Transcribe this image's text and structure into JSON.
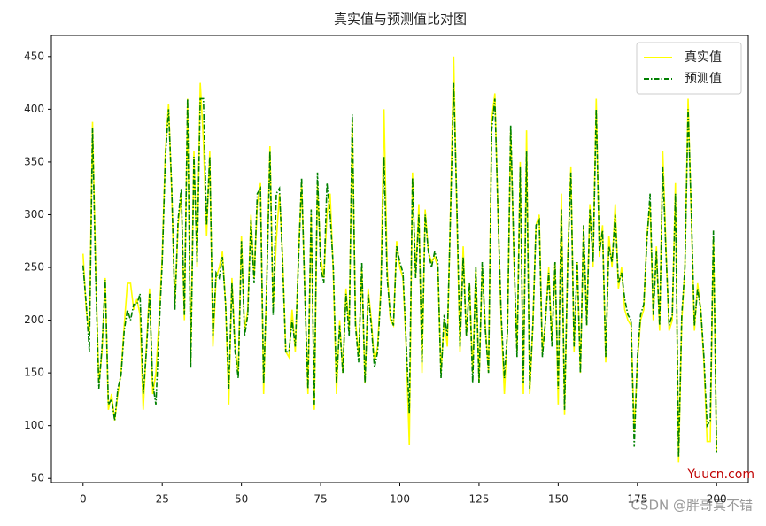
{
  "chart_data": {
    "type": "line",
    "title": "真实值与预测值比对图",
    "x": [
      0,
      1,
      2,
      3,
      4,
      5,
      6,
      7,
      8,
      9,
      10,
      11,
      12,
      13,
      14,
      15,
      16,
      17,
      18,
      19,
      20,
      21,
      22,
      23,
      24,
      25,
      26,
      27,
      28,
      29,
      30,
      31,
      32,
      33,
      34,
      35,
      36,
      37,
      38,
      39,
      40,
      41,
      42,
      43,
      44,
      45,
      46,
      47,
      48,
      49,
      50,
      51,
      52,
      53,
      54,
      55,
      56,
      57,
      58,
      59,
      60,
      61,
      62,
      63,
      64,
      65,
      66,
      67,
      68,
      69,
      70,
      71,
      72,
      73,
      74,
      75,
      76,
      77,
      78,
      79,
      80,
      81,
      82,
      83,
      84,
      85,
      86,
      87,
      88,
      89,
      90,
      91,
      92,
      93,
      94,
      95,
      96,
      97,
      98,
      99,
      100,
      101,
      102,
      103,
      104,
      105,
      106,
      107,
      108,
      109,
      110,
      111,
      112,
      113,
      114,
      115,
      116,
      117,
      118,
      119,
      120,
      121,
      122,
      123,
      124,
      125,
      126,
      127,
      128,
      129,
      130,
      131,
      132,
      133,
      134,
      135,
      136,
      137,
      138,
      139,
      140,
      141,
      142,
      143,
      144,
      145,
      146,
      147,
      148,
      149,
      150,
      151,
      152,
      153,
      154,
      155,
      156,
      157,
      158,
      159,
      160,
      161,
      162,
      163,
      164,
      165,
      166,
      167,
      168,
      169,
      170,
      171,
      172,
      173,
      174,
      175,
      176,
      177,
      178,
      179,
      180,
      181,
      182,
      183,
      184,
      185,
      186,
      187,
      188,
      189,
      190,
      191,
      192,
      193,
      194,
      195,
      196,
      197,
      198,
      199,
      200
    ],
    "series": [
      {
        "name": "真实值",
        "color": "#ffff00",
        "dash": "solid",
        "values": [
          263,
          210,
          185,
          388,
          250,
          140,
          170,
          240,
          115,
          130,
          105,
          130,
          150,
          195,
          235,
          235,
          210,
          220,
          205,
          115,
          175,
          230,
          130,
          150,
          200,
          260,
          360,
          405,
          320,
          215,
          290,
          320,
          200,
          410,
          160,
          360,
          250,
          425,
          370,
          280,
          360,
          175,
          240,
          250,
          265,
          215,
          120,
          240,
          175,
          150,
          280,
          190,
          210,
          300,
          240,
          310,
          330,
          130,
          240,
          365,
          210,
          275,
          320,
          260,
          170,
          165,
          210,
          170,
          260,
          330,
          230,
          130,
          300,
          115,
          330,
          260,
          240,
          300,
          320,
          245,
          130,
          200,
          150,
          230,
          190,
          390,
          200,
          165,
          250,
          140,
          230,
          200,
          160,
          175,
          230,
          400,
          250,
          200,
          195,
          275,
          250,
          240,
          175,
          82,
          340,
          240,
          310,
          150,
          305,
          265,
          255,
          260,
          250,
          150,
          200,
          175,
          305,
          450,
          300,
          170,
          270,
          185,
          235,
          150,
          250,
          140,
          250,
          195,
          150,
          390,
          415,
          300,
          200,
          130,
          190,
          380,
          260,
          170,
          350,
          130,
          380,
          130,
          195,
          290,
          300,
          170,
          200,
          250,
          180,
          255,
          120,
          320,
          110,
          260,
          345,
          170,
          255,
          150,
          290,
          195,
          310,
          250,
          410,
          260,
          290,
          160,
          280,
          250,
          310,
          230,
          250,
          210,
          200,
          195,
          95,
          160,
          200,
          210,
          280,
          310,
          200,
          270,
          190,
          360,
          270,
          190,
          200,
          330,
          65,
          200,
          250,
          410,
          300,
          190,
          235,
          210,
          160,
          85,
          85,
          280,
          75
        ]
      },
      {
        "name": "预测值",
        "color": "#008000",
        "dash": "dashdot",
        "values": [
          252,
          215,
          170,
          382,
          240,
          135,
          175,
          238,
          120,
          125,
          105,
          135,
          148,
          190,
          210,
          200,
          215,
          215,
          225,
          130,
          170,
          225,
          140,
          120,
          190,
          255,
          355,
          400,
          325,
          210,
          295,
          325,
          205,
          410,
          155,
          355,
          255,
          410,
          410,
          290,
          355,
          185,
          245,
          240,
          260,
          215,
          135,
          235,
          170,
          145,
          275,
          185,
          205,
          295,
          235,
          320,
          325,
          140,
          235,
          360,
          205,
          320,
          325,
          255,
          170,
          170,
          200,
          175,
          255,
          335,
          225,
          135,
          305,
          120,
          340,
          250,
          235,
          330,
          300,
          250,
          140,
          195,
          150,
          225,
          185,
          395,
          195,
          160,
          255,
          140,
          225,
          195,
          155,
          170,
          225,
          355,
          240,
          205,
          195,
          270,
          255,
          245,
          180,
          112,
          335,
          240,
          300,
          160,
          300,
          265,
          250,
          265,
          255,
          145,
          205,
          185,
          300,
          425,
          310,
          175,
          260,
          185,
          235,
          140,
          250,
          140,
          255,
          190,
          150,
          380,
          410,
          300,
          205,
          145,
          190,
          385,
          265,
          165,
          345,
          140,
          360,
          135,
          195,
          290,
          295,
          165,
          200,
          245,
          175,
          255,
          135,
          305,
          115,
          255,
          340,
          175,
          255,
          150,
          290,
          195,
          305,
          255,
          400,
          265,
          285,
          165,
          270,
          255,
          300,
          235,
          245,
          220,
          205,
          200,
          80,
          165,
          205,
          215,
          275,
          320,
          205,
          265,
          195,
          345,
          265,
          195,
          205,
          320,
          70,
          205,
          250,
          400,
          305,
          195,
          230,
          210,
          165,
          100,
          105,
          285,
          75
        ]
      }
    ],
    "xlim": [
      -10,
      210
    ],
    "ylim": [
      46,
      470
    ],
    "xticks": [
      0,
      25,
      50,
      75,
      100,
      125,
      150,
      175,
      200
    ],
    "yticks": [
      50,
      100,
      150,
      200,
      250,
      300,
      350,
      400,
      450
    ],
    "grid": false,
    "legend": "upper right"
  },
  "watermarks": [
    "Yuucn.com",
    "CSDN @胖哥真不错"
  ]
}
